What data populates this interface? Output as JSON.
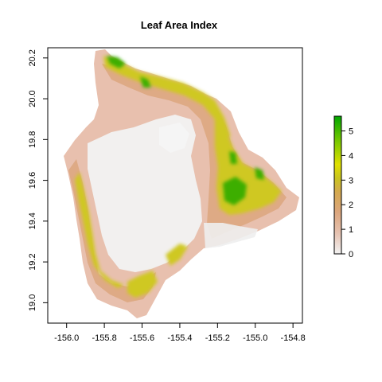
{
  "map": {
    "title": "Leaf Area Index",
    "type": "raster",
    "x_axis": {
      "range": [
        -156.1,
        -154.75
      ],
      "ticks": [
        -156.0,
        -155.8,
        -155.6,
        -155.4,
        -155.2,
        -155.0,
        -154.8
      ],
      "tick_labels": [
        "-156.0",
        "-155.8",
        "-155.6",
        "-155.4",
        "-155.2",
        "-155.0",
        "-154.8"
      ]
    },
    "y_axis": {
      "range": [
        18.9,
        20.25
      ],
      "ticks": [
        19.0,
        19.2,
        19.4,
        19.6,
        19.8,
        20.0,
        20.2
      ],
      "tick_labels": [
        "19.0",
        "19.2",
        "19.4",
        "19.6",
        "19.8",
        "20.0",
        "20.2"
      ]
    },
    "legend": {
      "position": "right",
      "range": [
        0,
        5.6
      ],
      "ticks": [
        0,
        1,
        2,
        3,
        4,
        5
      ],
      "tick_labels": [
        "0",
        "1",
        "2",
        "3",
        "4",
        "5"
      ],
      "gradient_colors": [
        "#f2f2f2",
        "#e6c2b1",
        "#dca67e",
        "#d4a94f",
        "#c9c41f",
        "#e0e000",
        "#78c800",
        "#00a600"
      ]
    },
    "colors": {
      "bare": "#f2f2f2",
      "low": "#e8c3b3",
      "mid": "#dca67e",
      "high": "#c8c81e",
      "very_high": "#3cb000"
    }
  }
}
